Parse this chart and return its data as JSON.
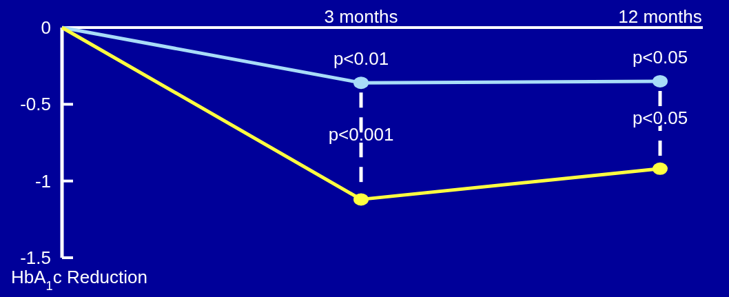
{
  "chart_data": {
    "type": "line",
    "categories": [
      null,
      "3 months",
      "12 months"
    ],
    "series": [
      {
        "color": "#a8dcf8",
        "values": [
          0,
          -0.36,
          -0.35
        ]
      },
      {
        "color": "#ffff40",
        "values": [
          0,
          -1.12,
          -0.92
        ]
      }
    ],
    "ylim": [
      -1.5,
      0
    ],
    "yticks": [
      0,
      -0.5,
      -1,
      -1.5
    ],
    "ylabel": "HbA$_{1}$c Reduction",
    "grid": false,
    "marker": "circle",
    "line_style": "solid",
    "annotations": [
      "p<0.01",
      "p<0.001",
      "p<0.05",
      "p<0.05"
    ]
  }
}
